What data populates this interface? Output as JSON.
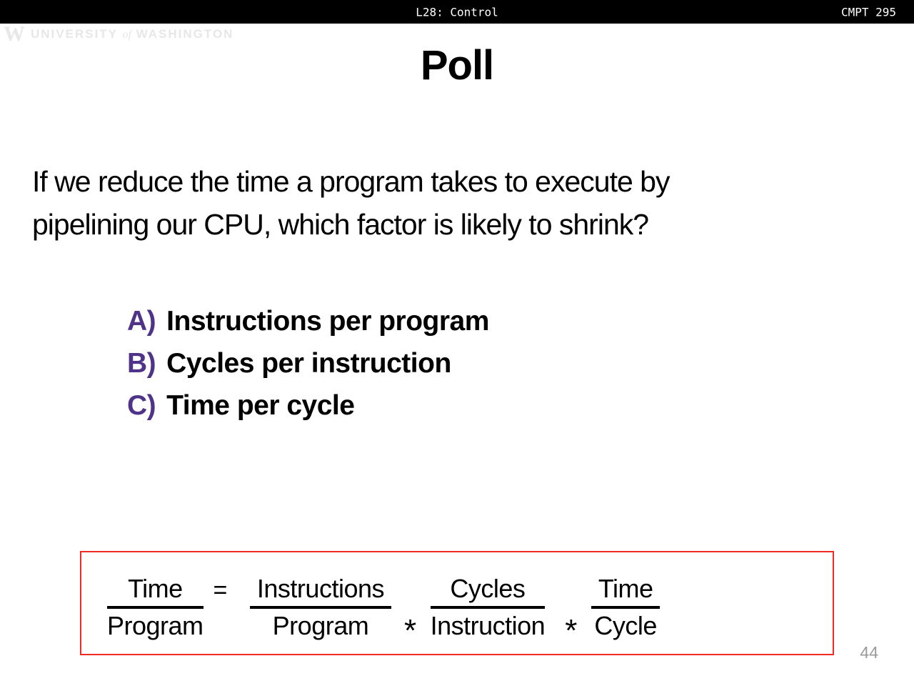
{
  "header": {
    "lecture": "L28: Control",
    "course": "CMPT 295"
  },
  "watermark": {
    "logo": "W",
    "university": "UNIVERSITY",
    "of": "of",
    "washington": "WASHINGTON"
  },
  "title": "Poll",
  "question_lines": [
    "If we reduce the time a program takes to execute by",
    "pipelining our CPU, which factor is likely to shrink?"
  ],
  "options": [
    {
      "letter": "A)",
      "text": "Instructions per program"
    },
    {
      "letter": "B)",
      "text": "Cycles per instruction"
    },
    {
      "letter": "C)",
      "text": "Time per cycle"
    }
  ],
  "formula": {
    "equals": "=",
    "times": "*",
    "result": {
      "num": "Time",
      "den": "Program"
    },
    "terms": [
      {
        "num": "Instructions",
        "den": "Program"
      },
      {
        "num": "Cycles",
        "den": "Instruction"
      },
      {
        "num": "Time",
        "den": "Cycle"
      }
    ]
  },
  "page_number": "44",
  "colors": {
    "accent_purple": "#4f3389",
    "box_red": "#ef2b24",
    "topbar_bg": "#000000",
    "page_number_gray": "#9a9a9a",
    "watermark_gray": "#e7e7e7"
  }
}
